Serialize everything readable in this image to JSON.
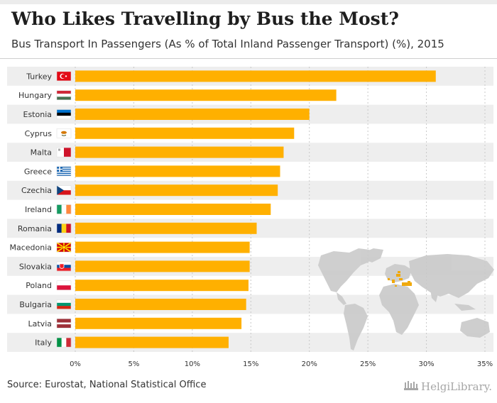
{
  "header": {
    "title": "Who Likes Travelling by Bus the Most?",
    "subtitle": "Bus Transport In Passengers (As % of Total Inland Passenger Transport) (%), 2015"
  },
  "footer": {
    "source": "Source: Eurostat, National Statistical Office",
    "logo_text": "HelgiLibrary."
  },
  "colors": {
    "bar": "#FFB000",
    "stripe": "#eeeeee",
    "text": "#333333",
    "grid": "#c8c8c8",
    "map_land": "#cccccc",
    "map_highlight": "#F0A500"
  },
  "chart_data": {
    "type": "bar",
    "orientation": "horizontal",
    "title": "Who Likes Travelling by Bus the Most?",
    "subtitle": "Bus Transport In Passengers (As % of Total Inland Passenger Transport) (%), 2015",
    "categories": [
      "Turkey",
      "Hungary",
      "Estonia",
      "Cyprus",
      "Malta",
      "Greece",
      "Czechia",
      "Ireland",
      "Romania",
      "Macedonia",
      "Slovakia",
      "Poland",
      "Bulgaria",
      "Latvia",
      "Italy"
    ],
    "values": [
      30.8,
      22.3,
      20.0,
      18.7,
      17.8,
      17.5,
      17.3,
      16.7,
      15.5,
      14.9,
      14.9,
      14.8,
      14.6,
      14.2,
      13.1
    ],
    "xlim": [
      0,
      35
    ],
    "xticks": [
      "0%",
      "5%",
      "10%",
      "15%",
      "20%",
      "25%",
      "30%",
      "35%"
    ],
    "xlabel": "",
    "ylabel": "",
    "grid": true,
    "flags": [
      "turkey-flag",
      "hungary-flag",
      "estonia-flag",
      "cyprus-flag",
      "malta-flag",
      "greece-flag",
      "czechia-flag",
      "ireland-flag",
      "romania-flag",
      "macedonia-flag",
      "slovakia-flag",
      "poland-flag",
      "bulgaria-flag",
      "latvia-flag",
      "italy-flag"
    ]
  }
}
